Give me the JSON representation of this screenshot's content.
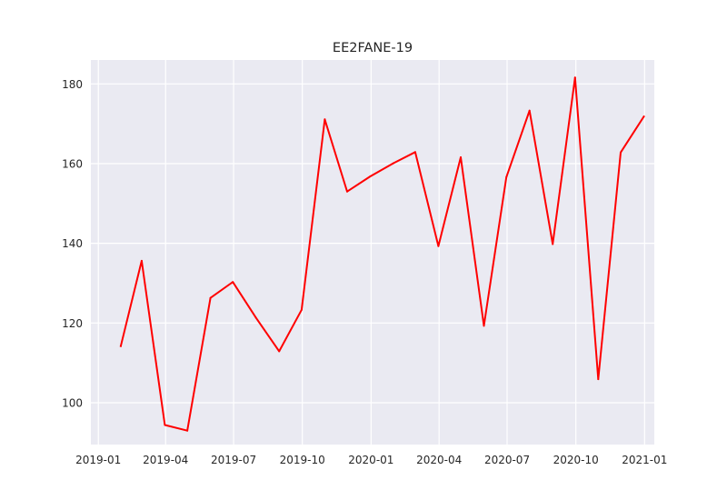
{
  "chart_data": {
    "type": "line",
    "title": "EE2FANE-19",
    "xlabel": "",
    "ylabel": "",
    "x_axis_type": "date",
    "xlim": [
      "2018-12-22",
      "2021-01-14"
    ],
    "ylim": [
      89.5,
      186.0
    ],
    "grid": true,
    "style": "seaborn-darkgrid",
    "x_ticks": [
      {
        "date": "2019-01-01",
        "label": "2019-01"
      },
      {
        "date": "2019-04-01",
        "label": "2019-04"
      },
      {
        "date": "2019-07-01",
        "label": "2019-07"
      },
      {
        "date": "2019-10-01",
        "label": "2019-10"
      },
      {
        "date": "2020-01-01",
        "label": "2020-01"
      },
      {
        "date": "2020-04-01",
        "label": "2020-04"
      },
      {
        "date": "2020-07-01",
        "label": "2020-07"
      },
      {
        "date": "2020-10-01",
        "label": "2020-10"
      },
      {
        "date": "2021-01-01",
        "label": "2021-01"
      }
    ],
    "y_ticks": [
      100,
      120,
      140,
      160,
      180
    ],
    "series": [
      {
        "color": "#ff0000",
        "points": [
          {
            "x": "2019-01-31",
            "y": 114.2
          },
          {
            "x": "2019-02-28",
            "y": 135.6
          },
          {
            "x": "2019-03-31",
            "y": 94.4
          },
          {
            "x": "2019-04-30",
            "y": 93.0
          },
          {
            "x": "2019-05-31",
            "y": 126.3
          },
          {
            "x": "2019-06-30",
            "y": 130.3
          },
          {
            "x": "2019-07-31",
            "y": 121.3
          },
          {
            "x": "2019-08-31",
            "y": 112.9
          },
          {
            "x": "2019-09-30",
            "y": 123.3
          },
          {
            "x": "2019-10-31",
            "y": 171.1
          },
          {
            "x": "2019-11-30",
            "y": 153.0
          },
          {
            "x": "2019-12-31",
            "y": 156.8
          },
          {
            "x": "2020-01-31",
            "y": 160.1
          },
          {
            "x": "2020-02-29",
            "y": 162.9
          },
          {
            "x": "2020-03-31",
            "y": 139.3
          },
          {
            "x": "2020-04-30",
            "y": 161.6
          },
          {
            "x": "2020-05-31",
            "y": 119.3
          },
          {
            "x": "2020-06-30",
            "y": 156.6
          },
          {
            "x": "2020-07-31",
            "y": 173.3
          },
          {
            "x": "2020-08-31",
            "y": 139.8
          },
          {
            "x": "2020-09-30",
            "y": 181.6
          },
          {
            "x": "2020-10-31",
            "y": 105.9
          },
          {
            "x": "2020-11-30",
            "y": 162.8
          },
          {
            "x": "2020-12-31",
            "y": 171.8
          }
        ]
      }
    ]
  }
}
